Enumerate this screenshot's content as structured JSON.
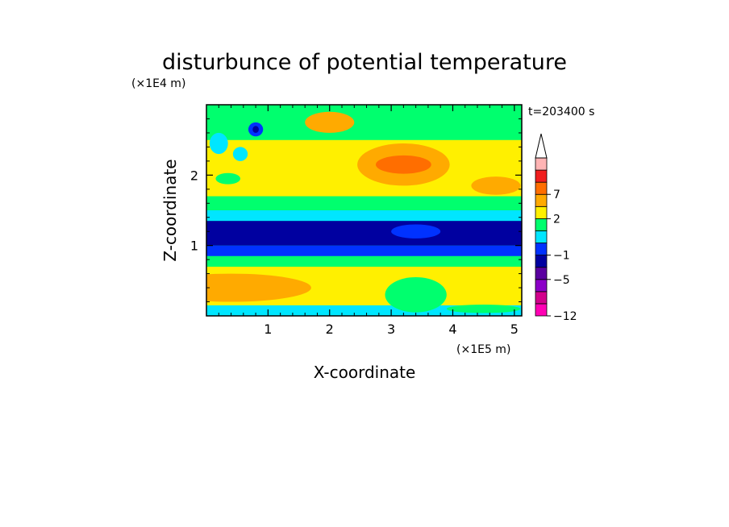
{
  "chart_data": {
    "type": "heatmap",
    "title": "disturbunce of potential temperature",
    "xlabel": "X-coordinate",
    "ylabel": "Z-coordinate",
    "x_unit": "(×1E5 m)",
    "y_unit": "(×1E4 m)",
    "time_label": "t=203400 s",
    "xlim": [
      0,
      5.12
    ],
    "ylim": [
      0,
      3.0
    ],
    "x_ticks": [
      {
        "value": 1,
        "label": "1"
      },
      {
        "value": 2,
        "label": "2"
      },
      {
        "value": 3,
        "label": "3"
      },
      {
        "value": 4,
        "label": "4"
      },
      {
        "value": 5,
        "label": "5"
      }
    ],
    "y_ticks": [
      {
        "value": 1,
        "label": "1"
      },
      {
        "value": 2,
        "label": "2"
      }
    ],
    "colorbar": {
      "levels": [
        -12,
        -9,
        -7,
        -5,
        -3,
        -1,
        0,
        1,
        2,
        4,
        7,
        9,
        11
      ],
      "colors": [
        "#ff00b4",
        "#d2008c",
        "#8c00c8",
        "#5a00a0",
        "#0000a0",
        "#0032ff",
        "#00e6ff",
        "#00ff6e",
        "#fff000",
        "#ffaa00",
        "#ff6e00",
        "#f01e1e",
        "#ffb4b4"
      ],
      "extend_max": true,
      "labels": [
        {
          "value": -12,
          "label": "−12"
        },
        {
          "value": -5,
          "label": "−5"
        },
        {
          "value": -1,
          "label": "−1"
        },
        {
          "value": 2,
          "label": "2"
        },
        {
          "value": 7,
          "label": "7"
        }
      ]
    },
    "field_bands": [
      {
        "z": [
          0.0,
          0.15
        ],
        "level": 0
      },
      {
        "z": [
          0.15,
          0.7
        ],
        "level": 2
      },
      {
        "z": [
          0.7,
          0.85
        ],
        "level": 1
      },
      {
        "z": [
          0.85,
          1.0
        ],
        "level": -1
      },
      {
        "z": [
          1.0,
          1.35
        ],
        "level": -3
      },
      {
        "z": [
          1.35,
          1.5
        ],
        "level": 0
      },
      {
        "z": [
          1.5,
          1.7
        ],
        "level": 1
      },
      {
        "z": [
          1.7,
          2.5
        ],
        "level": 2
      },
      {
        "z": [
          2.5,
          3.0
        ],
        "level": 1
      }
    ],
    "features": [
      {
        "shape": "ellipse",
        "cx": 3.2,
        "cz": 2.15,
        "rx": 0.75,
        "rz": 0.3,
        "level": 4
      },
      {
        "shape": "ellipse",
        "cx": 3.2,
        "cz": 2.15,
        "rx": 0.45,
        "rz": 0.13,
        "level": 7
      },
      {
        "shape": "ellipse",
        "cx": 0.4,
        "cz": 0.4,
        "rx": 1.3,
        "rz": 0.2,
        "level": 4
      },
      {
        "shape": "ellipse",
        "cx": 4.7,
        "cz": 1.85,
        "rx": 0.4,
        "rz": 0.13,
        "level": 4
      },
      {
        "shape": "ellipse",
        "cx": 0.8,
        "cz": 2.65,
        "rx": 0.12,
        "rz": 0.1,
        "level": -1
      },
      {
        "shape": "ellipse",
        "cx": 0.8,
        "cz": 2.65,
        "rx": 0.05,
        "rz": 0.05,
        "level": -3
      },
      {
        "shape": "ellipse",
        "cx": 0.2,
        "cz": 2.45,
        "rx": 0.15,
        "rz": 0.15,
        "level": 0
      },
      {
        "shape": "ellipse",
        "cx": 0.55,
        "cz": 2.3,
        "rx": 0.12,
        "rz": 0.1,
        "level": 0
      },
      {
        "shape": "ellipse",
        "cx": 0.35,
        "cz": 1.95,
        "rx": 0.2,
        "rz": 0.08,
        "level": 1
      },
      {
        "shape": "ellipse",
        "cx": 4.3,
        "cz": 2.8,
        "rx": 0.5,
        "rz": 0.2,
        "level": 1
      },
      {
        "shape": "ellipse",
        "cx": 3.4,
        "cz": 1.2,
        "rx": 0.4,
        "rz": 0.1,
        "level": -1
      },
      {
        "shape": "ellipse",
        "cx": 2.0,
        "cz": 2.75,
        "rx": 0.4,
        "rz": 0.15,
        "level": 4
      },
      {
        "shape": "ellipse",
        "cx": 3.4,
        "cz": 0.3,
        "rx": 0.5,
        "rz": 0.25,
        "level": 1
      },
      {
        "shape": "ellipse",
        "cx": 4.5,
        "cz": 0.1,
        "rx": 0.6,
        "rz": 0.06,
        "level": 1
      }
    ]
  }
}
